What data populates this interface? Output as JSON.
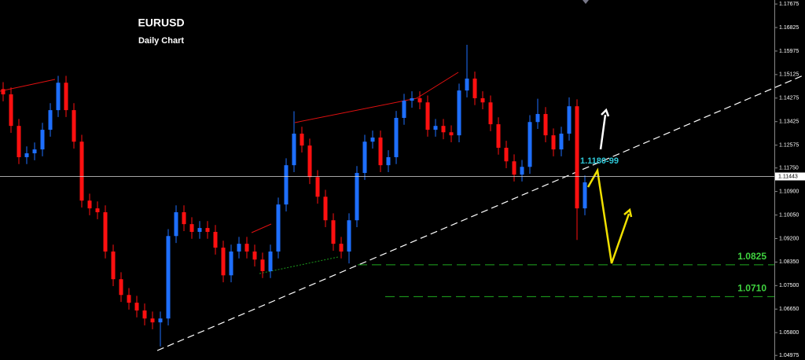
{
  "chart_data": {
    "type": "candlestick",
    "title": "EURUSD",
    "subtitle": "Daily Chart",
    "annotation": "1.1180-99",
    "up_color": "#1e6fff",
    "down_color": "#ff1010",
    "current_price": 1.11443,
    "levels": [
      1.0825,
      {
        "value": 1.071,
        "label": "1.0710"
      }
    ],
    "ylim": [
      1.0481,
      1.1782
    ],
    "yticks": [
      1.17675,
      1.16825,
      1.15975,
      1.15125,
      1.14275,
      1.13425,
      1.12575,
      {
        "value": 1.1175,
        "label": "1.11750"
      },
      {
        "value": 1.109,
        "label": "1.10900"
      },
      {
        "value": 1.1005,
        "label": "1.10050"
      },
      {
        "value": 1.092,
        "label": "1.09200"
      },
      {
        "value": 1.0835,
        "label": "1.08350"
      },
      {
        "value": 1.075,
        "label": "1.07500"
      },
      {
        "value": 1.0665,
        "label": "1.06650"
      },
      {
        "value": 1.058,
        "label": "1.05800"
      },
      1.04975
    ],
    "open": [
      1.146,
      1.1441,
      1.1327,
      1.1214,
      1.1228,
      1.1242,
      1.1313,
      1.1384,
      1.1483,
      1.1384,
      1.127,
      1.1057,
      1.1029,
      1.1015,
      1.0873,
      1.0773,
      1.0716,
      1.0688,
      1.066,
      1.0631,
      1.0617,
      1.0631,
      1.0929,
      1.1015,
      1.0972,
      1.0944,
      1.0958,
      1.0944,
      1.0887,
      1.0787,
      1.0873,
      1.0901,
      1.0873,
      1.0844,
      1.0802,
      1.0873,
      1.1043,
      1.1185,
      1.1299,
      1.1256,
      1.1142,
      1.1071,
      1.0986,
      1.0901,
      1.0873,
      1.0986,
      1.1157,
      1.127,
      1.1285,
      1.1185,
      1.1214,
      1.1356,
      1.1418,
      1.1427,
      1.1412,
      1.1313,
      1.1327,
      1.1304,
      1.1293,
      1.1455,
      1.1498,
      1.1427,
      1.1412,
      1.1333,
      1.1248,
      1.1199,
      1.1151,
      1.1179,
      1.1341,
      1.137,
      1.1293,
      1.1242,
      1.1299,
      1.1398,
      1.1029
    ],
    "high": [
      1.1485,
      1.1466,
      1.1352,
      1.1253,
      1.1267,
      1.1338,
      1.1409,
      1.1508,
      1.1508,
      1.1409,
      1.1295,
      1.1082,
      1.1054,
      1.104,
      1.0898,
      1.0798,
      1.0741,
      1.0713,
      1.0685,
      1.0656,
      1.0656,
      1.0954,
      1.104,
      1.104,
      1.0997,
      1.0983,
      1.0983,
      1.0969,
      1.0912,
      1.0898,
      1.0926,
      1.0926,
      1.0898,
      1.0869,
      1.0898,
      1.1068,
      1.121,
      1.138,
      1.1324,
      1.1281,
      1.1167,
      1.1096,
      1.1011,
      1.0926,
      1.1011,
      1.1182,
      1.1295,
      1.131,
      1.131,
      1.1239,
      1.1381,
      1.1443,
      1.1452,
      1.1452,
      1.1437,
      1.1352,
      1.1352,
      1.1329,
      1.148,
      1.162,
      1.1523,
      1.1452,
      1.1437,
      1.1358,
      1.1273,
      1.1224,
      1.1204,
      1.1366,
      1.1425,
      1.1395,
      1.1318,
      1.1324,
      1.143,
      1.1423,
      1.1148
    ],
    "low": [
      1.1416,
      1.1302,
      1.1189,
      1.1189,
      1.1203,
      1.1217,
      1.1288,
      1.1359,
      1.1359,
      1.1245,
      1.1032,
      1.1004,
      1.099,
      1.0848,
      1.0748,
      1.0691,
      1.0663,
      1.0635,
      1.0606,
      1.0592,
      1.053,
      1.0606,
      1.0904,
      1.0947,
      1.0919,
      1.0919,
      1.0919,
      1.0862,
      1.0762,
      1.0762,
      1.0848,
      1.0848,
      1.0819,
      1.0777,
      1.0777,
      1.0848,
      1.1018,
      1.116,
      1.1231,
      1.1117,
      1.1046,
      1.0961,
      1.0876,
      1.0848,
      1.083,
      1.0961,
      1.1132,
      1.1245,
      1.116,
      1.116,
      1.1189,
      1.1331,
      1.1393,
      1.1387,
      1.1288,
      1.1288,
      1.1279,
      1.1268,
      1.1268,
      1.143,
      1.1402,
      1.1387,
      1.1308,
      1.1223,
      1.1174,
      1.1126,
      1.1126,
      1.1154,
      1.1316,
      1.1268,
      1.1217,
      1.1217,
      1.1274,
      1.0915,
      1.1004
    ],
    "close": [
      1.1441,
      1.1327,
      1.1214,
      1.1228,
      1.1242,
      1.1313,
      1.1384,
      1.1483,
      1.1384,
      1.127,
      1.1057,
      1.1029,
      1.1015,
      1.0873,
      1.0773,
      1.0716,
      1.0688,
      1.066,
      1.0631,
      1.0617,
      1.0631,
      1.0929,
      1.1015,
      1.0972,
      1.0944,
      1.0958,
      1.0944,
      1.0887,
      1.0787,
      1.0873,
      1.0901,
      1.0873,
      1.0844,
      1.0802,
      1.0873,
      1.1043,
      1.1185,
      1.1299,
      1.1256,
      1.1142,
      1.1071,
      1.0986,
      1.0901,
      1.0873,
      1.0986,
      1.1157,
      1.127,
      1.1285,
      1.1185,
      1.1214,
      1.1356,
      1.1418,
      1.1427,
      1.1412,
      1.1313,
      1.1327,
      1.1304,
      1.1293,
      1.1455,
      1.1498,
      1.1427,
      1.1412,
      1.1333,
      1.1248,
      1.1199,
      1.1151,
      1.1179,
      1.1341,
      1.137,
      1.1293,
      1.1242,
      1.1299,
      1.1398,
      1.1029,
      1.1123
    ]
  }
}
